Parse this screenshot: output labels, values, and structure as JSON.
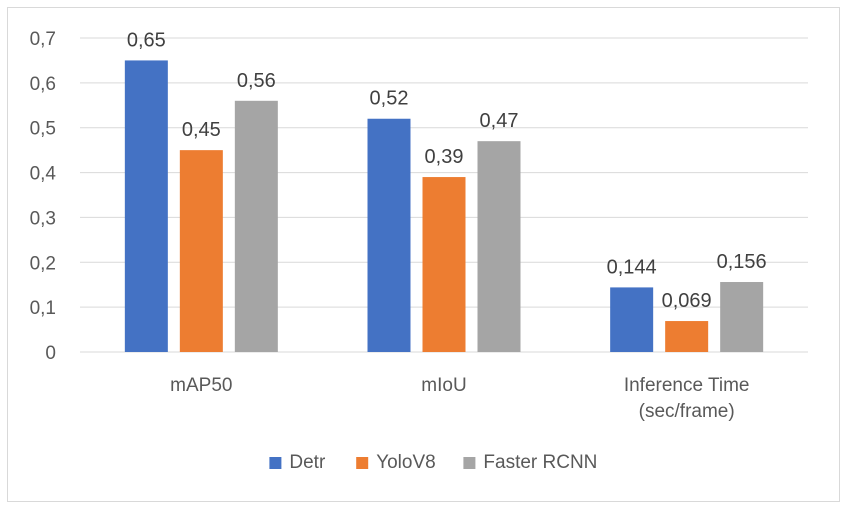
{
  "chart_data": {
    "type": "bar",
    "title": "",
    "xlabel": "",
    "ylabel": "",
    "categories": [
      "mAP50",
      "mIoU",
      "Inference Time\n(sec/frame)"
    ],
    "series": [
      {
        "name": "Detr",
        "color": "#4472c4",
        "values": [
          0.65,
          0.52,
          0.144
        ],
        "labels": [
          "0,65",
          "0,52",
          "0,144"
        ]
      },
      {
        "name": "YoloV8",
        "color": "#ed7d31",
        "values": [
          0.45,
          0.39,
          0.069
        ],
        "labels": [
          "0,45",
          "0,39",
          "0,069"
        ]
      },
      {
        "name": "Faster RCNN",
        "color": "#a5a5a5",
        "values": [
          0.56,
          0.47,
          0.156
        ],
        "labels": [
          "0,56",
          "0,47",
          "0,156"
        ]
      }
    ],
    "ylim": [
      0,
      0.7
    ],
    "yticks": [
      0,
      0.1,
      0.2,
      0.3,
      0.4,
      0.5,
      0.6,
      0.7
    ],
    "ytick_labels": [
      "0",
      "0,1",
      "0,2",
      "0,3",
      "0,4",
      "0,5",
      "0,6",
      "0,7"
    ],
    "grid": true,
    "legend": "bottom"
  }
}
